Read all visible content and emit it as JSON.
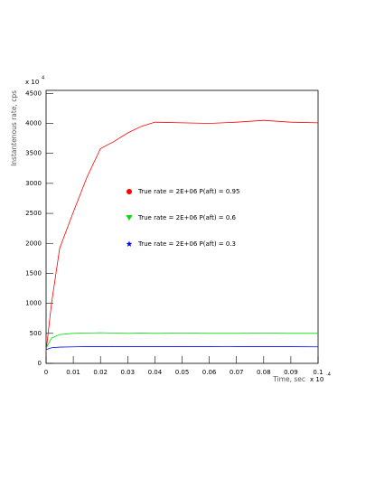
{
  "chart_data": {
    "type": "line",
    "y_axis_label": "Instantenous rate, cps",
    "x_axis_label": "Time, sec",
    "y_multiplier": {
      "base": "x 10",
      "exponent": "4"
    },
    "x_multiplier": {
      "base": "x 10",
      "exponent": "-4"
    },
    "x": [
      0,
      0.002,
      0.005,
      0.01,
      0.015,
      0.02,
      0.025,
      0.03,
      0.035,
      0.04,
      0.05,
      0.06,
      0.07,
      0.08,
      0.09,
      0.1
    ],
    "series": [
      {
        "name": "True rate = 2E+06 P(aft) = 0.95",
        "color": "#ff0000",
        "marker": "circle",
        "values": [
          200,
          1000,
          1920,
          2520,
          3100,
          3580,
          3700,
          3840,
          3950,
          4020,
          4010,
          4000,
          4020,
          4050,
          4020,
          4010
        ]
      },
      {
        "name": "True rate = 2E+06 P(aft) = 0.6",
        "color": "#00dd00",
        "marker": "triangle-down",
        "values": [
          250,
          420,
          480,
          500,
          505,
          510,
          505,
          500,
          505,
          500,
          505,
          500,
          500,
          505,
          500,
          500
        ]
      },
      {
        "name": "True rate = 2E+06 P(aft) = 0.3",
        "color": "#0000ff",
        "marker": "star",
        "values": [
          230,
          260,
          270,
          275,
          280,
          280,
          278,
          280,
          278,
          280,
          278,
          280,
          278,
          280,
          278,
          275
        ]
      }
    ],
    "xlim": [
      0,
      0.1
    ],
    "ylim": [
      0,
      4550
    ],
    "xticks": [
      0,
      0.01,
      0.02,
      0.03,
      0.04,
      0.05,
      0.06,
      0.07,
      0.08,
      0.09,
      0.1
    ],
    "yticks": [
      0,
      500,
      1000,
      1500,
      2000,
      2500,
      3000,
      3500,
      4000,
      4500
    ],
    "grid": false
  }
}
